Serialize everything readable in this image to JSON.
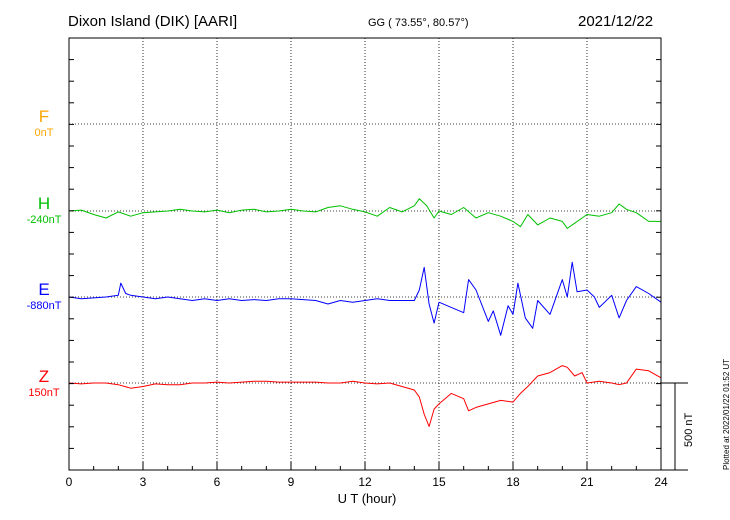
{
  "header": {
    "station": "Dixon Island (DIK)  [AARI]",
    "coords": "GG ( 73.55°,  80.57°)",
    "date": "2021/12/22"
  },
  "plotted_note": "Plotted at 2022/01/22 01:52 UT",
  "components": [
    {
      "letter": "F",
      "baseline": "0nT",
      "color": "#ffa500"
    },
    {
      "letter": "H",
      "baseline": "-240nT",
      "color": "#00c000"
    },
    {
      "letter": "E",
      "baseline": "-880nT",
      "color": "#0000ff"
    },
    {
      "letter": "Z",
      "baseline": "150nT",
      "color": "#ff0000"
    }
  ],
  "scale_label": "500 nT",
  "chart_data": {
    "type": "line",
    "title": "Dixon Island (DIK)  [AARI]",
    "xlabel": "U T (hour)",
    "ylabel": "",
    "xlim": [
      0,
      24
    ],
    "x_ticks": [
      "0",
      "3",
      "6",
      "9",
      "12",
      "15",
      "18",
      "21",
      "24"
    ],
    "scale_bar_nT": 500,
    "grid": true,
    "units": "nT",
    "series": [
      {
        "name": "F",
        "baseline_nT": 0,
        "color": "#ffa500",
        "x": [],
        "y": []
      },
      {
        "name": "H",
        "baseline_nT": -240,
        "color": "#00c000",
        "x": [
          0,
          0.5,
          1,
          1.5,
          2,
          2.5,
          3,
          3.5,
          4,
          4.5,
          5,
          5.5,
          6,
          6.5,
          7,
          7.5,
          8,
          8.5,
          9,
          9.5,
          10,
          10.5,
          11,
          11.5,
          12,
          12.5,
          13,
          13.5,
          14,
          14.2,
          14.5,
          14.8,
          15,
          15.5,
          16,
          16.5,
          17,
          17.5,
          18,
          18.3,
          18.6,
          19,
          19.5,
          20,
          20.2,
          20.5,
          20.8,
          21,
          21.5,
          22,
          22.3,
          22.6,
          23,
          23.5,
          24
        ],
        "y": [
          0,
          5,
          -20,
          -40,
          -5,
          -30,
          -10,
          -5,
          0,
          10,
          0,
          -5,
          5,
          -10,
          5,
          10,
          -5,
          0,
          10,
          0,
          -5,
          20,
          30,
          10,
          -5,
          -30,
          20,
          -5,
          30,
          70,
          30,
          -40,
          0,
          -20,
          20,
          -40,
          -10,
          -30,
          -60,
          -90,
          -20,
          -80,
          -40,
          -60,
          -100,
          -70,
          -40,
          -20,
          -30,
          -10,
          40,
          10,
          -10,
          -60,
          -60
        ]
      },
      {
        "name": "E",
        "baseline_nT": -880,
        "color": "#0000ff",
        "x": [
          0,
          0.5,
          1,
          1.5,
          2,
          2.1,
          2.3,
          2.5,
          3,
          3.5,
          4,
          4.5,
          5,
          5.5,
          6,
          6.5,
          7,
          7.5,
          8,
          8.5,
          9,
          9.5,
          10,
          10.5,
          11,
          11.5,
          12,
          12.5,
          13,
          13.5,
          14,
          14.2,
          14.4,
          14.6,
          14.8,
          15,
          15.5,
          16,
          16.2,
          16.5,
          17,
          17.2,
          17.5,
          17.8,
          18,
          18.2,
          18.5,
          18.8,
          19,
          19.5,
          20,
          20.2,
          20.4,
          20.6,
          21,
          21.3,
          21.5,
          22,
          22.3,
          22.6,
          23,
          23.5,
          24
        ],
        "y": [
          0,
          -10,
          -5,
          0,
          10,
          80,
          20,
          10,
          0,
          -10,
          0,
          -10,
          -20,
          -10,
          -20,
          -10,
          -20,
          -15,
          -20,
          -10,
          -10,
          -15,
          -20,
          -40,
          -20,
          -30,
          -20,
          -10,
          -20,
          -20,
          -20,
          40,
          170,
          -40,
          -150,
          -30,
          -60,
          -90,
          100,
          40,
          -140,
          -80,
          -220,
          -50,
          -100,
          80,
          -120,
          -180,
          -20,
          -100,
          100,
          0,
          200,
          30,
          40,
          0,
          -60,
          10,
          -120,
          -20,
          60,
          20,
          -30
        ]
      },
      {
        "name": "Z",
        "baseline_nT": 150,
        "color": "#ff0000",
        "x": [
          0,
          0.5,
          1,
          1.5,
          2,
          2.5,
          3,
          3.5,
          4,
          4.5,
          5,
          5.5,
          6,
          6.5,
          7,
          7.5,
          8,
          8.5,
          9,
          9.5,
          10,
          10.5,
          11,
          11.5,
          12,
          12.5,
          13,
          13.5,
          14,
          14.2,
          14.4,
          14.6,
          14.8,
          15,
          15.5,
          16,
          16.2,
          16.5,
          17,
          17.5,
          18,
          18.3,
          18.6,
          19,
          19.5,
          20,
          20.2,
          20.5,
          20.8,
          21,
          21.5,
          22,
          22.3,
          22.6,
          23,
          23.5,
          24
        ],
        "y": [
          0,
          -5,
          0,
          0,
          -10,
          -30,
          -20,
          -5,
          -10,
          -10,
          0,
          0,
          5,
          0,
          5,
          10,
          10,
          5,
          5,
          5,
          5,
          0,
          0,
          10,
          0,
          -5,
          0,
          -20,
          -40,
          -80,
          -180,
          -250,
          -150,
          -120,
          -60,
          -90,
          -160,
          -140,
          -120,
          -100,
          -110,
          -60,
          -20,
          40,
          60,
          100,
          90,
          40,
          60,
          0,
          10,
          0,
          -10,
          0,
          80,
          70,
          30
        ]
      }
    ]
  }
}
